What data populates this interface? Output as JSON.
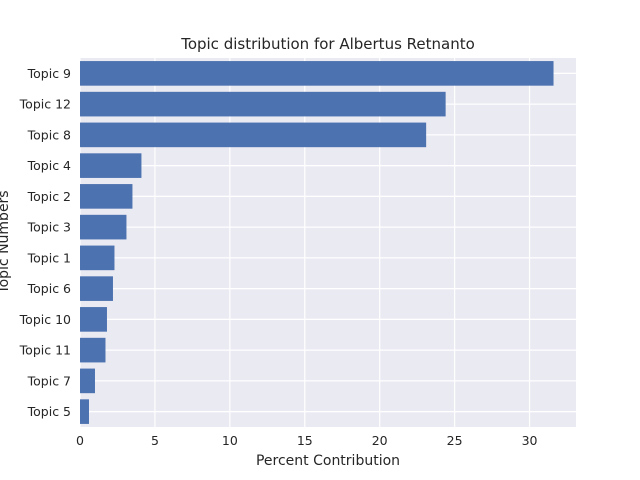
{
  "chart_data": {
    "type": "bar",
    "orientation": "horizontal",
    "title": "Topic distribution for Albertus Retnanto",
    "xlabel": "Percent Contribution",
    "ylabel": "Topic Numbers",
    "categories": [
      "Topic 9",
      "Topic 12",
      "Topic 8",
      "Topic 4",
      "Topic 2",
      "Topic 3",
      "Topic 1",
      "Topic 6",
      "Topic 10",
      "Topic 11",
      "Topic 7",
      "Topic 5"
    ],
    "values": [
      31.6,
      24.4,
      23.1,
      4.1,
      3.5,
      3.1,
      2.3,
      2.2,
      1.8,
      1.7,
      1.0,
      0.6
    ],
    "xlim": [
      0,
      33.1
    ],
    "xticks": [
      0,
      5,
      10,
      15,
      20,
      25,
      30
    ],
    "grid": true,
    "colors": {
      "bar": "#4c72b0",
      "plot_background": "#eaeaf2",
      "grid": "#ffffff"
    }
  }
}
